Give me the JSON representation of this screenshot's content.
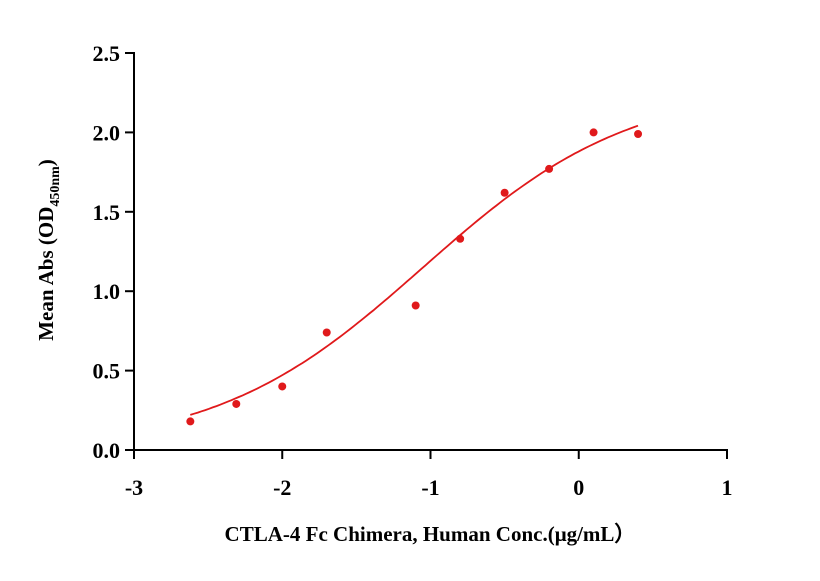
{
  "chart_data": {
    "type": "scatter",
    "title": "",
    "xlabel": "CTLA-4 Fc Chimera, Human  Conc.(μg/mL）",
    "ylabel_main": "Mean Abs (OD",
    "ylabel_sub": "450nm",
    "ylabel_end": ")",
    "xlim": [
      -3,
      1
    ],
    "ylim": [
      0,
      2.5
    ],
    "xticks": [
      -3,
      -2,
      -1,
      0,
      1
    ],
    "xtick_labels": [
      "-3",
      "-2",
      "-1",
      "0",
      "1"
    ],
    "yticks": [
      0,
      0.5,
      1,
      1.5,
      2,
      2.5
    ],
    "ytick_labels": [
      "0.0",
      "0.5",
      "1.0",
      "1.5",
      "2.0",
      "2.5"
    ],
    "grid": false,
    "color": "#e0191b",
    "series": [
      {
        "name": "Mean Abs",
        "x": [
          -2.62,
          -2.31,
          -2.0,
          -1.7,
          -1.1,
          -0.8,
          -0.5,
          -0.2,
          0.1,
          0.4
        ],
        "y": [
          0.18,
          0.29,
          0.4,
          0.74,
          0.91,
          1.33,
          1.62,
          1.77,
          2.0,
          1.99
        ]
      }
    ],
    "fit": {
      "model": "4PL",
      "bottom": 0,
      "top": 2.3,
      "ec50_log": -1.05,
      "hill": 0.62,
      "x_range": [
        -2.62,
        0.4
      ]
    }
  }
}
